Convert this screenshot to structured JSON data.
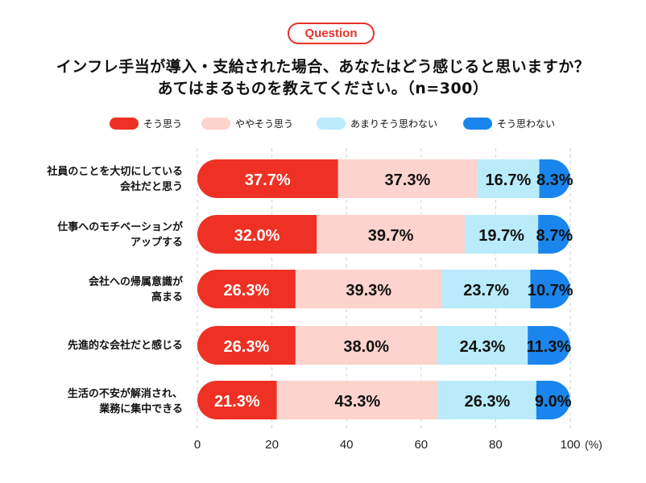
{
  "badge": "Question",
  "title_line1": "インフレ手当が導入・支給された場合、あなたはどう感じると思いますか？",
  "title_line2": "あてはまるものを教えてください。（n=300）",
  "legend": [
    {
      "label": "そう思う",
      "color": "#ee3124"
    },
    {
      "label": "ややそう思う",
      "color": "#fdd3cd"
    },
    {
      "label": "あまりそう思わない",
      "color": "#b9ebfb"
    },
    {
      "label": "そう思わない",
      "color": "#1a85ec"
    }
  ],
  "categories": [
    [
      "社員のことを大切にしている",
      "会社だと思う"
    ],
    [
      "仕事へのモチベーションが",
      "アップする"
    ],
    [
      "会社への帰属意識が",
      "高まる"
    ],
    [
      "先進的な会社だと感じる"
    ],
    [
      "生活の不安が解消され、",
      "業務に集中できる"
    ]
  ],
  "chart_data": {
    "type": "bar",
    "orientation": "horizontal",
    "stacked": true,
    "categories": [
      "社員のことを大切にしている会社だと思う",
      "仕事へのモチベーションがアップする",
      "会社への帰属意識が高まる",
      "先進的な会社だと感じる",
      "生活の不安が解消され、業務に集中できる"
    ],
    "series": [
      {
        "name": "そう思う",
        "values": [
          37.7,
          32.0,
          26.3,
          26.3,
          21.3
        ],
        "labels": [
          "37.7%",
          "32.0%",
          "26.3%",
          "26.3%",
          "21.3%"
        ]
      },
      {
        "name": "ややそう思う",
        "values": [
          37.3,
          39.7,
          39.3,
          38.0,
          43.3
        ],
        "labels": [
          "37.3%",
          "39.7%",
          "39.3%",
          "38.0%",
          "43.3%"
        ]
      },
      {
        "name": "あまりそう思わない",
        "values": [
          16.7,
          19.7,
          23.7,
          24.3,
          26.3
        ],
        "labels": [
          "16.7%",
          "19.7%",
          "23.7%",
          "24.3%",
          "26.3%"
        ]
      },
      {
        "name": "そう思わない",
        "values": [
          8.3,
          8.7,
          10.7,
          11.3,
          9.0
        ],
        "labels": [
          "8.3%",
          "8.7%",
          "10.7%",
          "11.3%",
          "9.0%"
        ]
      }
    ],
    "xlim": [
      0,
      100
    ],
    "xticks": [
      0,
      20,
      40,
      60,
      80,
      100
    ],
    "xtick_labels": [
      "0",
      "20",
      "40",
      "60",
      "80",
      "100"
    ],
    "unit_label": "(%)",
    "grid": true,
    "legend_position": "top"
  }
}
